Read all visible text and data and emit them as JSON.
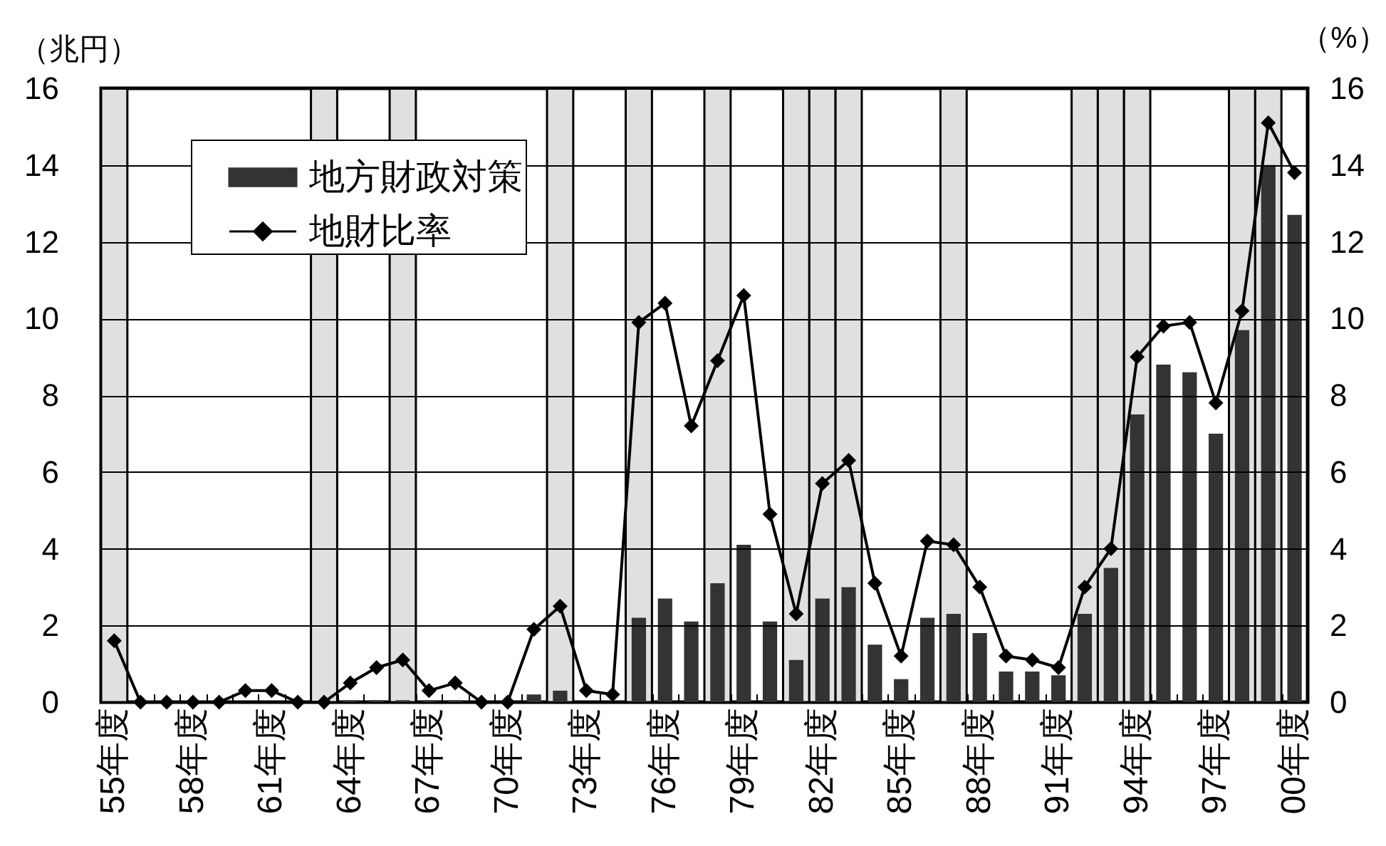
{
  "chart_data": {
    "type": "bar",
    "ylabel": "（兆円）",
    "y2label": "（%）",
    "categories": [
      "55年度",
      null,
      null,
      "58年度",
      null,
      null,
      "61年度",
      null,
      null,
      "64年度",
      null,
      null,
      "67年度",
      null,
      null,
      "70年度",
      null,
      null,
      "73年度",
      null,
      null,
      "76年度",
      null,
      null,
      "79年度",
      null,
      null,
      "82年度",
      null,
      null,
      "85年度",
      null,
      null,
      "88年度",
      null,
      null,
      "91年度",
      null,
      null,
      "94年度",
      null,
      null,
      "97年度",
      null,
      null,
      "00年度"
    ],
    "ylim": [
      0,
      16
    ],
    "yticks": [
      0,
      2,
      4,
      6,
      8,
      10,
      12,
      14,
      16
    ],
    "y2lim": [
      0,
      16
    ],
    "y2ticks": [
      0,
      2,
      4,
      6,
      8,
      10,
      12,
      14,
      16
    ],
    "series": [
      {
        "axis": "y2",
        "color": "#e0e0e0",
        "values": [
          16,
          null,
          null,
          null,
          null,
          null,
          null,
          null,
          16,
          null,
          null,
          16,
          null,
          null,
          null,
          null,
          null,
          16,
          null,
          null,
          16,
          null,
          null,
          16,
          null,
          null,
          16,
          16,
          16,
          null,
          null,
          null,
          16,
          null,
          null,
          null,
          null,
          16,
          16,
          16,
          null,
          null,
          null,
          16,
          16,
          null
        ]
      },
      {
        "name": "地方財政対策",
        "color": "#333333",
        "values": [
          0,
          0,
          0,
          0,
          0,
          0,
          0,
          0,
          0,
          0.05,
          0.05,
          0.05,
          0.05,
          0.05,
          0,
          0,
          0.2,
          0.3,
          0,
          0,
          2.2,
          2.7,
          2.1,
          3.1,
          4.1,
          2.1,
          1.1,
          2.7,
          3.0,
          1.5,
          0.6,
          2.2,
          2.3,
          1.8,
          0.8,
          0.8,
          0.7,
          2.3,
          3.5,
          7.5,
          8.8,
          8.6,
          7.0,
          9.7,
          14.0,
          12.7
        ]
      },
      {
        "name": "地財比率",
        "type": "line",
        "axis": "y2",
        "color": "#000000",
        "values": [
          1.6,
          0,
          0,
          0,
          0,
          0.3,
          0.3,
          0,
          0,
          0.5,
          0.9,
          1.1,
          0.3,
          0.5,
          0,
          0,
          1.9,
          2.5,
          0.3,
          0.2,
          9.9,
          10.4,
          7.2,
          8.9,
          10.6,
          4.9,
          2.3,
          5.7,
          6.3,
          3.1,
          1.2,
          4.2,
          4.1,
          3.0,
          1.2,
          1.1,
          0.9,
          3.0,
          4.0,
          9.0,
          9.8,
          9.9,
          7.8,
          10.2,
          15.1,
          13.8
        ]
      }
    ],
    "grid": "y",
    "legend": "top left",
    "marker": "diamond",
    "line_style": "solid"
  }
}
